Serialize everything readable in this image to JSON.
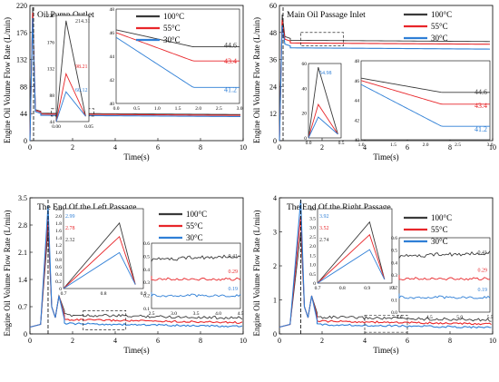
{
  "colors": {
    "c100": "#3a3a3a",
    "c55": "#e8262a",
    "c30": "#2f7fd6"
  },
  "legend": [
    "100°C",
    "55°C",
    "30°C"
  ],
  "xlabel": "Time(s)",
  "ylabel": "Engine Oil Volume Flow Rate (L/min)",
  "chart_data": [
    {
      "type": "line",
      "title": "Oil Pump Outlet",
      "x": [
        0,
        0.05,
        0.1,
        0.2,
        0.3,
        1,
        2,
        3,
        5,
        10
      ],
      "series": [
        {
          "name": "100°C",
          "values": [
            0,
            214.31,
            120,
            70,
            52,
            47,
            45.5,
            45,
            44.8,
            44.6
          ]
        },
        {
          "name": "55°C",
          "values": [
            0,
            98.21,
            80,
            62,
            50,
            45.5,
            44,
            43.6,
            43.5,
            43.4
          ]
        },
        {
          "name": "30°C",
          "values": [
            0,
            60.12,
            58,
            55,
            47,
            44.5,
            42,
            41.5,
            41.3,
            41.2
          ]
        }
      ],
      "xlim": [
        0,
        10
      ],
      "ylim": [
        0,
        220
      ],
      "yticks": [
        "0",
        "44",
        "88",
        "132",
        "176",
        "220"
      ],
      "xticks": [
        "0",
        "2",
        "4",
        "6",
        "8",
        "10"
      ],
      "inset_peak": {
        "xlim": [
          0,
          0.05
        ],
        "xticks": [
          "0.00",
          "0.05"
        ],
        "yticks": [
          "44",
          "88",
          "132",
          "176",
          "220"
        ],
        "labels": [
          "214.31",
          "98.21",
          "60.12"
        ]
      },
      "inset_end": {
        "xlim": [
          0,
          3.0
        ],
        "ylim": [
          40,
          48
        ],
        "xticks": [
          "0.0",
          "0.5",
          "1.0",
          "1.5",
          "2.0",
          "2.5",
          "3.0"
        ],
        "yticks": [
          "40",
          "42",
          "44",
          "46",
          "48"
        ],
        "labels": [
          "44.6",
          "43.4",
          "41.2"
        ]
      }
    },
    {
      "type": "line",
      "title": "Main Oil Passage Inlet",
      "x": [
        0,
        0.1,
        0.2,
        0.3,
        0.5,
        1,
        2,
        3,
        5,
        10
      ],
      "series": [
        {
          "name": "100°C",
          "values": [
            0,
            54.98,
            52,
            50,
            48,
            46,
            45.3,
            45,
            44.8,
            44.6
          ]
        },
        {
          "name": "55°C",
          "values": [
            0,
            53,
            51,
            49,
            47,
            45.5,
            44,
            43.6,
            43.5,
            43.4
          ]
        },
        {
          "name": "30°C",
          "values": [
            0,
            52,
            50,
            48,
            46,
            45,
            42,
            41.5,
            41.3,
            41.2
          ]
        }
      ],
      "xlim": [
        0,
        10
      ],
      "ylim": [
        0,
        60
      ],
      "yticks": [
        "0",
        "12",
        "24",
        "36",
        "48",
        "60"
      ],
      "xticks": [
        "0",
        "2",
        "4",
        "6",
        "8",
        "10"
      ],
      "inset_peak": {
        "xlim": [
          0,
          0.5
        ],
        "xticks": [
          "0.0",
          "0.5"
        ],
        "yticks": [
          "0",
          "20",
          "40",
          "60"
        ],
        "labels": [
          "54.98"
        ]
      },
      "inset_end": {
        "xlim": [
          1.0,
          3.0
        ],
        "ylim": [
          40,
          48
        ],
        "xticks": [
          "1.0",
          "1.5",
          "2.0",
          "2.5",
          "3.0"
        ],
        "yticks": [
          "40",
          "42",
          "44",
          "46",
          "48"
        ],
        "labels": [
          "44.6",
          "43.4",
          "41.2"
        ]
      }
    },
    {
      "type": "line",
      "title": "The End Of the Left Passage",
      "x": [
        0,
        0.5,
        0.7,
        0.8,
        0.85,
        0.9,
        1.0,
        1.2,
        1.5,
        2,
        3,
        4,
        5,
        10
      ],
      "series": [
        {
          "name": "100°C",
          "values": [
            0.2,
            0.3,
            1.2,
            2.32,
            2.0,
            1.0,
            0.6,
            0.8,
            0.5,
            0.5,
            0.43,
            0.42,
            0.42,
            0.41
          ]
        },
        {
          "name": "55°C",
          "values": [
            0.2,
            0.3,
            1.3,
            2.78,
            2.4,
            1.0,
            0.5,
            0.7,
            0.4,
            0.35,
            0.3,
            0.3,
            0.29,
            0.29
          ]
        },
        {
          "name": "30°C",
          "values": [
            0.2,
            0.3,
            1.4,
            2.99,
            2.5,
            1.0,
            0.4,
            0.6,
            0.3,
            0.22,
            0.2,
            0.2,
            0.19,
            0.19
          ]
        }
      ],
      "xlim": [
        0,
        10
      ],
      "ylim": [
        0,
        3.5
      ],
      "yticks": [
        "0",
        "0.7",
        "1.4",
        "2.1",
        "2.8",
        "3.5"
      ],
      "xticks": [
        "0",
        "2",
        "4",
        "6",
        "8",
        "10"
      ],
      "inset_peak": {
        "xlim": [
          0.7,
          0.9
        ],
        "xticks": [
          "0.7",
          "0.8",
          "0.9"
        ],
        "yticks": [
          "0",
          "0.2",
          "0.4",
          "0.6",
          "0.8",
          "1.0",
          "1.2",
          "1.4",
          "1.6",
          "1.8",
          "2.0",
          "2.2"
        ],
        "labels": [
          "2.99",
          "2.78",
          "2.32"
        ]
      },
      "inset_end": {
        "xlim": [
          2.5,
          4.5
        ],
        "ylim": [
          0.1,
          0.6
        ],
        "xticks": [
          "2.5",
          "3.0",
          "3.5",
          "4.0",
          "4.5"
        ],
        "yticks": [
          "0.1",
          "0.2",
          "0.3",
          "0.4",
          "0.5",
          "0.6"
        ],
        "labels": [
          "0.41",
          "0.29",
          "0.19"
        ]
      }
    },
    {
      "type": "line",
      "title": "The End Of the Right Passage",
      "x": [
        0,
        0.5,
        0.8,
        0.9,
        1.0,
        1.1,
        1.3,
        1.5,
        2,
        4,
        6,
        8,
        10
      ],
      "series": [
        {
          "name": "100°C",
          "values": [
            0.2,
            0.3,
            1.5,
            2.74,
            2.5,
            1.2,
            0.8,
            0.9,
            0.6,
            0.5,
            0.45,
            0.42,
            0.41
          ]
        },
        {
          "name": "55°C",
          "values": [
            0.2,
            0.3,
            1.8,
            3.52,
            3.2,
            1.0,
            0.6,
            0.7,
            0.4,
            0.32,
            0.3,
            0.29,
            0.29
          ]
        },
        {
          "name": "30°C",
          "values": [
            0.2,
            0.3,
            2.0,
            3.92,
            3.5,
            0.8,
            0.4,
            0.5,
            0.25,
            0.2,
            0.19,
            0.19,
            0.19
          ]
        }
      ],
      "xlim": [
        0,
        10
      ],
      "ylim": [
        0,
        4
      ],
      "yticks": [
        "0",
        "1",
        "2",
        "3",
        "4"
      ],
      "xticks": [
        "0",
        "2",
        "4",
        "6",
        "8",
        "10"
      ],
      "inset_peak": {
        "xlim": [
          0.7,
          1.0
        ],
        "xticks": [
          "0.7",
          "0.8",
          "0.9",
          "1.0"
        ],
        "yticks": [
          "0",
          "0.5",
          "1.0",
          "1.5",
          "2.0",
          "2.5",
          "3.0",
          "3.5",
          "4.0"
        ],
        "labels": [
          "3.92",
          "3.52",
          "2.74"
        ]
      },
      "inset_end": {
        "xlim": [
          4.0,
          5.5
        ],
        "ylim": [
          0.0,
          0.6
        ],
        "xticks": [
          "4.0",
          "4.5",
          "5.0",
          "5.5"
        ],
        "yticks": [
          "0.0",
          "0.1",
          "0.2",
          "0.3",
          "0.4",
          "0.5",
          "0.6"
        ],
        "labels": [
          "0.41",
          "0.29",
          "0.19"
        ]
      }
    }
  ]
}
